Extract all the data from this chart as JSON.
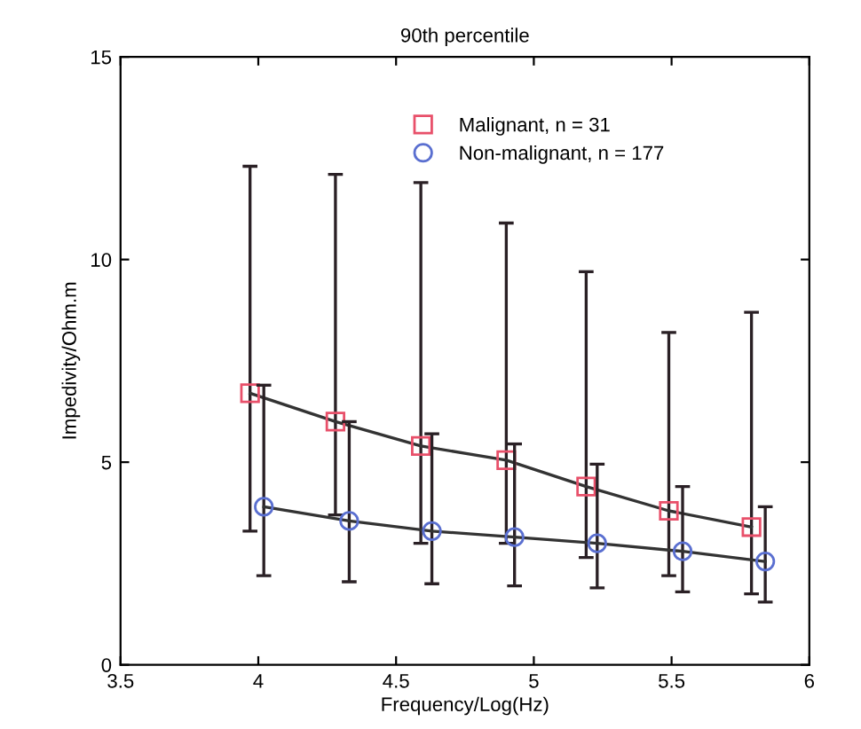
{
  "chart_data": {
    "type": "line",
    "title": "90th percentile",
    "xlabel": "Frequency/Log(Hz)",
    "ylabel": "Impedivity/Ohm.m",
    "xlim": [
      3.5,
      6
    ],
    "xticks": [
      3.5,
      4,
      4.5,
      5,
      5.5,
      6
    ],
    "ylim": [
      0,
      15
    ],
    "yticks": [
      0,
      5,
      10,
      15
    ],
    "grid": false,
    "legend": "top",
    "line_style": "solid",
    "series": [
      {
        "name": "Malignant, n = 31",
        "color": "#e8506a",
        "marker": "square",
        "x": [
          3.97,
          4.28,
          4.59,
          4.9,
          5.19,
          5.49,
          5.79
        ],
        "values": [
          6.7,
          6.0,
          5.4,
          5.05,
          4.4,
          3.8,
          3.4
        ],
        "errors": [
          [
            3.3,
            12.3
          ],
          [
            3.7,
            12.1
          ],
          [
            3.0,
            11.9
          ],
          [
            3.0,
            10.9
          ],
          [
            2.65,
            9.7
          ],
          [
            2.2,
            8.2
          ],
          [
            1.75,
            8.7
          ]
        ]
      },
      {
        "name": "Non-malignant, n = 177",
        "color": "#5a6fd0",
        "marker": "circle",
        "x": [
          4.02,
          4.33,
          4.63,
          4.93,
          5.23,
          5.54,
          5.84
        ],
        "values": [
          3.9,
          3.55,
          3.3,
          3.15,
          3.0,
          2.8,
          2.55
        ],
        "errors": [
          [
            2.2,
            6.9
          ],
          [
            2.05,
            6.0
          ],
          [
            2.0,
            5.7
          ],
          [
            1.95,
            5.45
          ],
          [
            1.9,
            4.95
          ],
          [
            1.8,
            4.4
          ],
          [
            1.55,
            3.9
          ]
        ]
      }
    ]
  }
}
